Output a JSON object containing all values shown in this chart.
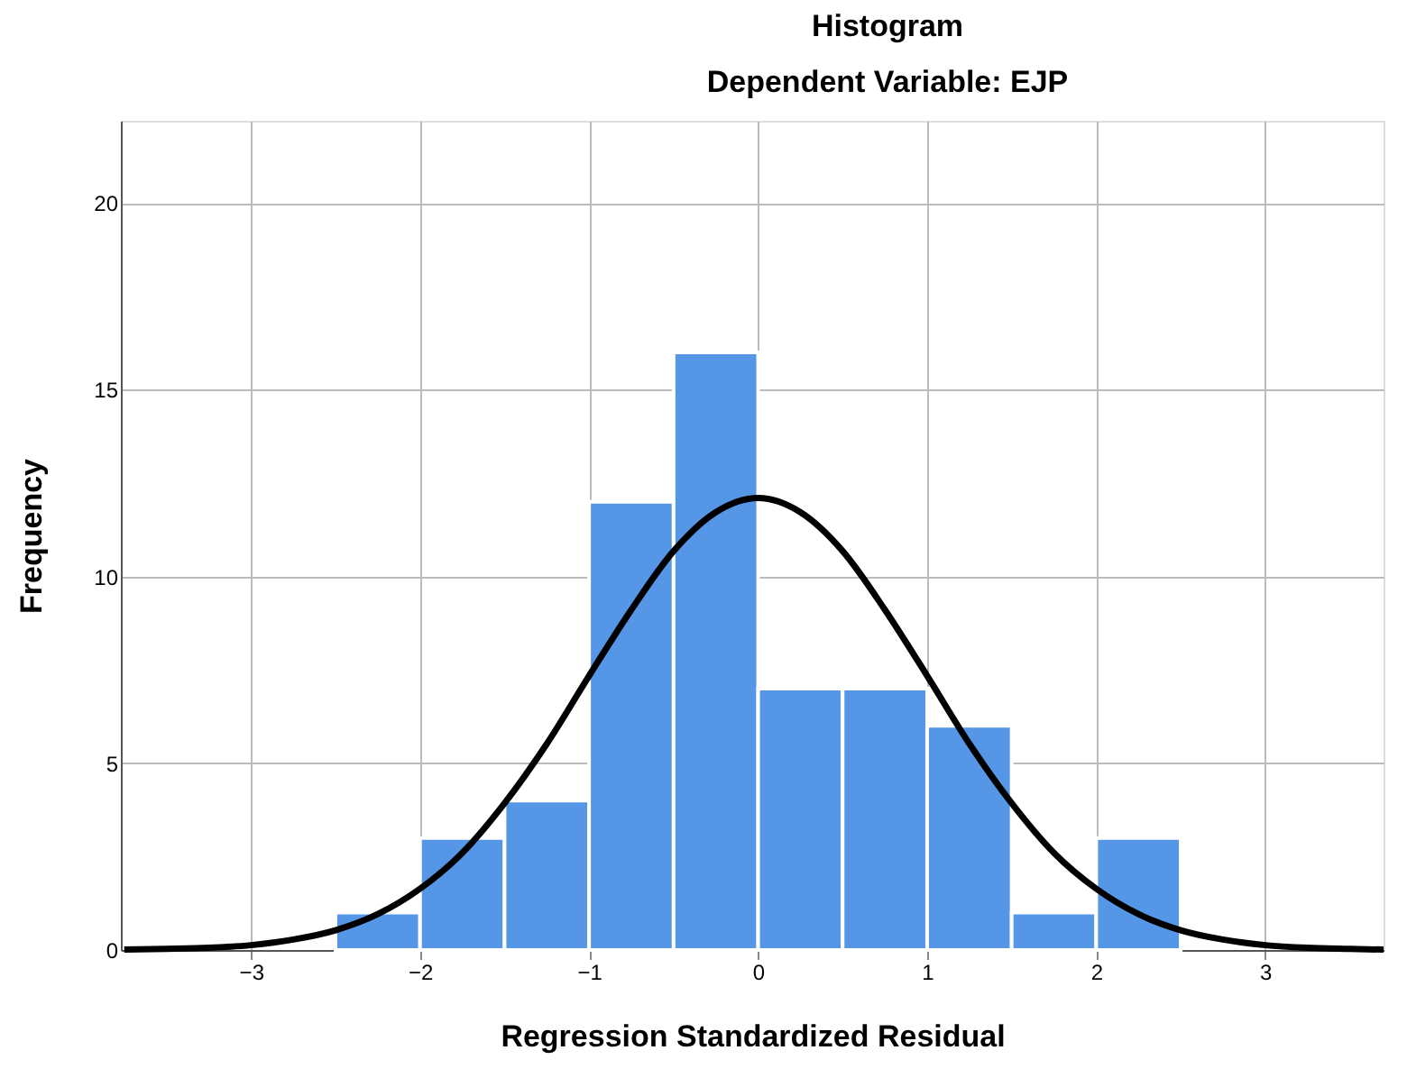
{
  "chart_data": {
    "type": "histogram",
    "title": "Histogram",
    "subtitle": "Dependent Variable: EJP",
    "xlabel": "Regression Standardized Residual",
    "ylabel": "Frequency",
    "bins": [
      -2.5,
      -2.0,
      -1.5,
      -1.0,
      -0.5,
      0.0,
      0.5,
      1.0,
      1.5,
      2.0,
      2.5
    ],
    "values": [
      1,
      3,
      4,
      12,
      16,
      7,
      7,
      6,
      1,
      3
    ],
    "color": "#5596e6",
    "series": [
      {
        "type": "line",
        "color": "#000000",
        "x": [
          -3.75,
          -3.5,
          -3.25,
          -3.0,
          -2.75,
          -2.5,
          -2.25,
          -2.0,
          -1.75,
          -1.5,
          -1.25,
          -1.0,
          -0.75,
          -0.5,
          -0.25,
          0.0,
          0.25,
          0.5,
          0.75,
          1.0,
          1.25,
          1.5,
          1.75,
          2.0,
          2.25,
          2.5,
          2.75,
          3.0,
          3.25,
          3.5,
          3.7
        ],
        "values": [
          0.01,
          0.03,
          0.06,
          0.13,
          0.28,
          0.53,
          0.96,
          1.64,
          2.6,
          3.93,
          5.52,
          7.34,
          9.11,
          10.68,
          11.72,
          12.1,
          11.72,
          10.68,
          9.11,
          7.34,
          5.52,
          3.93,
          2.6,
          1.64,
          0.96,
          0.53,
          0.28,
          0.13,
          0.06,
          0.03,
          0.01
        ]
      }
    ],
    "xlim": [
      -3.77,
      3.7
    ],
    "ylim": [
      0,
      22.2
    ],
    "xticks": [
      -3,
      -2,
      -1,
      0,
      1,
      2,
      3
    ],
    "yticks": [
      0,
      5,
      10,
      15,
      20
    ],
    "grid": true
  }
}
